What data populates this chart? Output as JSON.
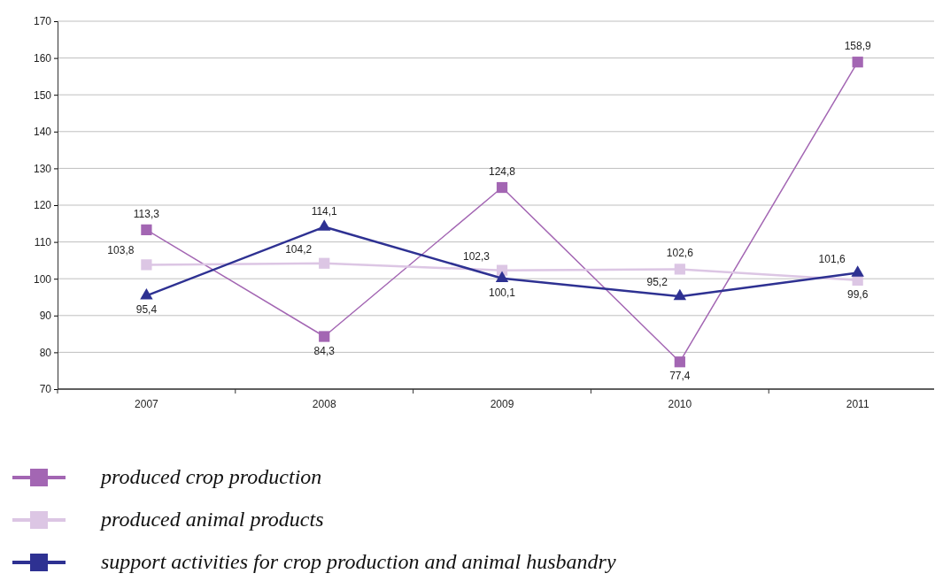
{
  "chart_data": {
    "type": "line",
    "categories": [
      "2007",
      "2008",
      "2009",
      "2010",
      "2011"
    ],
    "ylim": [
      70,
      170
    ],
    "yticks": [
      70,
      80,
      90,
      100,
      110,
      120,
      130,
      140,
      150,
      160,
      170
    ],
    "grid": "y",
    "legend": "bottom",
    "series": [
      {
        "name": "produced crop production",
        "color": "#a366b3",
        "marker": "square",
        "values": [
          113.3,
          84.3,
          124.8,
          77.4,
          158.9
        ],
        "value_labels": [
          "113,3",
          "84,3",
          "124,8",
          "77,4",
          "158,9"
        ]
      },
      {
        "name": "produced animal products",
        "color": "#dcc6e4",
        "marker": "square",
        "values": [
          103.8,
          104.2,
          102.3,
          102.6,
          99.6
        ],
        "value_labels": [
          "103,8",
          "104,2",
          "102,3",
          "102,6",
          "99,6"
        ]
      },
      {
        "name": "support activities for crop production and animal husbandry",
        "color": "#2e3192",
        "marker": "triangle",
        "values": [
          95.4,
          114.1,
          100.1,
          95.2,
          101.6
        ],
        "value_labels": [
          "95,4",
          "114,1",
          "100,1",
          "95,2",
          "101,6"
        ]
      }
    ]
  }
}
